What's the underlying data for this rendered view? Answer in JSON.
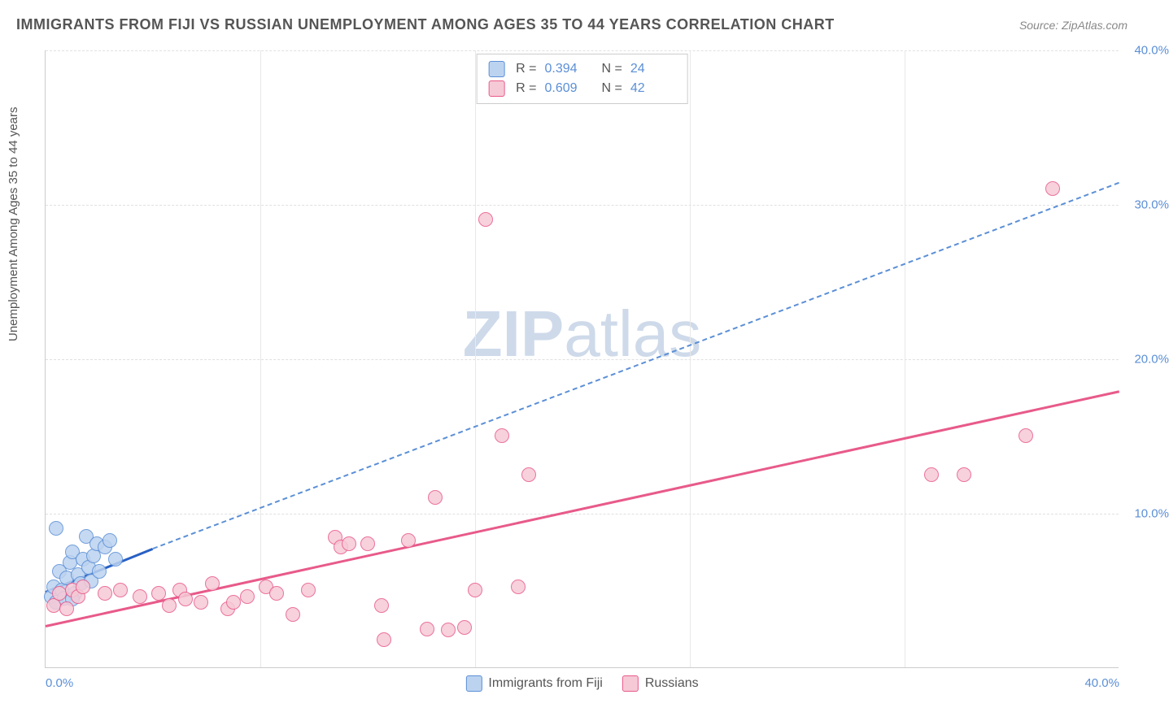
{
  "header": {
    "title": "IMMIGRANTS FROM FIJI VS RUSSIAN UNEMPLOYMENT AMONG AGES 35 TO 44 YEARS CORRELATION CHART",
    "source": "Source: ZipAtlas.com"
  },
  "ylabel": "Unemployment Among Ages 35 to 44 years",
  "watermark": "ZIPatlas",
  "chart": {
    "type": "scatter",
    "xlim": [
      0,
      40
    ],
    "ylim": [
      0,
      40
    ],
    "y_ticks": [
      10,
      20,
      30,
      40
    ],
    "y_tick_labels": [
      "10.0%",
      "20.0%",
      "30.0%",
      "40.0%"
    ],
    "x_ticks": [
      0,
      40
    ],
    "x_tick_labels": [
      "0.0%",
      "40.0%"
    ],
    "x_gridlines": [
      8,
      16,
      24,
      32
    ],
    "grid_color": "#e0e0e0",
    "axis_color": "#cccccc",
    "tick_color": "#5b8fd6",
    "background_color": "#ffffff",
    "marker_radius": 9,
    "marker_stroke_width": 1.5,
    "series": [
      {
        "name": "Immigrants from Fiji",
        "fill": "#bcd3f0",
        "stroke": "#5b8fd6",
        "R": "0.394",
        "N": "24",
        "trend": {
          "style": "solid-blue",
          "x1": 0,
          "y1": 5.0,
          "x2": 4.0,
          "y2": 7.8
        },
        "trend_ext": {
          "style": "dashed-blue",
          "x1": 4.0,
          "y1": 7.8,
          "x2": 40,
          "y2": 31.5
        },
        "points": [
          [
            0.2,
            4.6
          ],
          [
            0.3,
            5.2
          ],
          [
            0.4,
            4.2
          ],
          [
            0.5,
            6.2
          ],
          [
            0.6,
            5.0
          ],
          [
            0.7,
            4.5
          ],
          [
            0.8,
            5.8
          ],
          [
            0.9,
            6.8
          ],
          [
            1.0,
            7.5
          ],
          [
            1.1,
            4.8
          ],
          [
            1.2,
            6.0
          ],
          [
            1.3,
            5.4
          ],
          [
            1.4,
            7.0
          ],
          [
            1.5,
            8.5
          ],
          [
            1.6,
            6.5
          ],
          [
            1.7,
            5.6
          ],
          [
            1.8,
            7.2
          ],
          [
            1.9,
            8.0
          ],
          [
            2.0,
            6.2
          ],
          [
            2.2,
            7.8
          ],
          [
            2.4,
            8.2
          ],
          [
            2.6,
            7.0
          ],
          [
            0.4,
            9.0
          ],
          [
            1.0,
            4.4
          ]
        ]
      },
      {
        "name": "Russians",
        "fill": "#f6c9d6",
        "stroke": "#e85a8a",
        "R": "0.609",
        "N": "42",
        "trend": {
          "style": "solid-pink",
          "x1": 0,
          "y1": 2.8,
          "x2": 40,
          "y2": 18.0
        },
        "points": [
          [
            0.3,
            4.0
          ],
          [
            0.5,
            4.8
          ],
          [
            0.8,
            3.8
          ],
          [
            1.0,
            5.0
          ],
          [
            1.2,
            4.6
          ],
          [
            1.4,
            5.2
          ],
          [
            2.2,
            4.8
          ],
          [
            2.8,
            5.0
          ],
          [
            3.5,
            4.6
          ],
          [
            4.2,
            4.8
          ],
          [
            5.0,
            5.0
          ],
          [
            5.2,
            4.4
          ],
          [
            5.8,
            4.2
          ],
          [
            6.2,
            5.4
          ],
          [
            6.8,
            3.8
          ],
          [
            7.5,
            4.6
          ],
          [
            8.2,
            5.2
          ],
          [
            8.6,
            4.8
          ],
          [
            9.2,
            3.4
          ],
          [
            10.8,
            8.4
          ],
          [
            11.0,
            7.8
          ],
          [
            11.3,
            8.0
          ],
          [
            12.0,
            8.0
          ],
          [
            12.5,
            4.0
          ],
          [
            12.6,
            1.8
          ],
          [
            13.5,
            8.2
          ],
          [
            14.2,
            2.5
          ],
          [
            14.5,
            11.0
          ],
          [
            15.0,
            2.4
          ],
          [
            15.6,
            2.6
          ],
          [
            16.0,
            5.0
          ],
          [
            16.4,
            29.0
          ],
          [
            17.0,
            15.0
          ],
          [
            17.6,
            5.2
          ],
          [
            18.0,
            12.5
          ],
          [
            33.0,
            12.5
          ],
          [
            34.2,
            12.5
          ],
          [
            36.5,
            15.0
          ],
          [
            37.5,
            31.0
          ],
          [
            9.8,
            5.0
          ],
          [
            7.0,
            4.2
          ],
          [
            4.6,
            4.0
          ]
        ]
      }
    ]
  },
  "legend_bottom": [
    {
      "label": "Immigrants from Fiji",
      "fill": "#bcd3f0",
      "stroke": "#5b8fd6"
    },
    {
      "label": "Russians",
      "fill": "#f6c9d6",
      "stroke": "#e85a8a"
    }
  ]
}
